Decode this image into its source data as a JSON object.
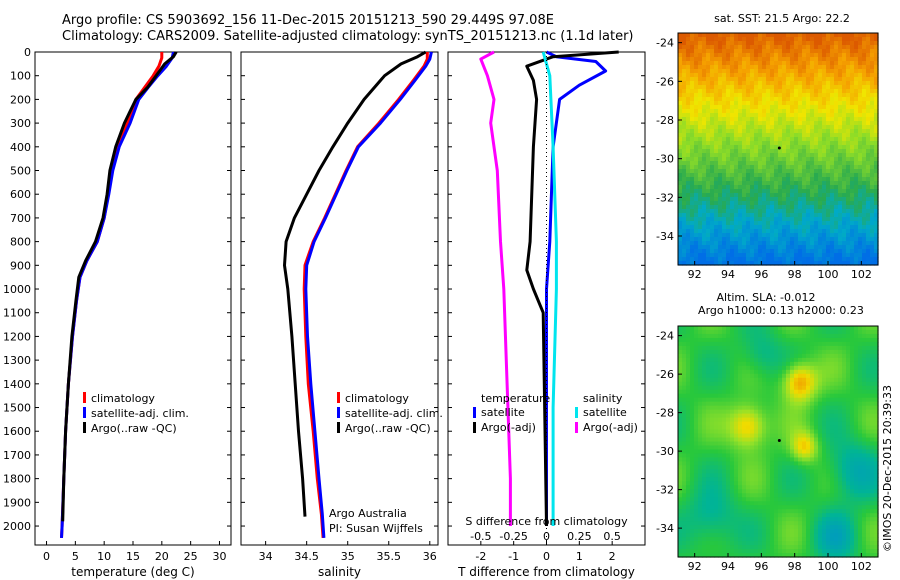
{
  "header": {
    "line1": "Argo profile: CS 5903692_156 11-Dec-2015 20151213_590 29.449S 97.08E",
    "line2": "Climatology: CARS2009. Satellite-adjusted climatology: synTS_20151213.nc (1.1d later)"
  },
  "footer": {
    "stamp": "©IMOS 20-Dec-2015 20:39:33"
  },
  "colors": {
    "climatology": "#ff0000",
    "satellite": "#0000ff",
    "argo": "#000000",
    "sat_diff_s": "#00e5ee",
    "argo_diff_s": "#ff00ff"
  },
  "chart_data": [
    {
      "type": "line",
      "xlabel": "temperature (deg C)",
      "ylabel": "",
      "xlim": [
        -2,
        32
      ],
      "ylim": [
        2080,
        0
      ],
      "xticks": [
        "0",
        "5",
        "10",
        "15",
        "20",
        "25",
        "30"
      ],
      "yticks": [
        "0",
        "100",
        "200",
        "300",
        "400",
        "500",
        "600",
        "700",
        "800",
        "900",
        "1000",
        "1100",
        "1200",
        "1300",
        "1400",
        "1500",
        "1600",
        "1700",
        "1800",
        "1900",
        "2000"
      ],
      "legend": [
        "climatology",
        "satellite-adj. clim.",
        "Argo(..raw -QC)"
      ],
      "series": [
        {
          "name": "climatology",
          "color": "#ff0000",
          "points": [
            [
              20.0,
              0
            ],
            [
              20.0,
              25
            ],
            [
              19.5,
              60
            ],
            [
              18.5,
              100
            ],
            [
              17.0,
              150
            ],
            [
              15.5,
              200
            ],
            [
              14.0,
              300
            ],
            [
              12.2,
              400
            ],
            [
              11.3,
              500
            ],
            [
              10.7,
              600
            ],
            [
              10.0,
              700
            ],
            [
              8.8,
              800
            ],
            [
              7.0,
              880
            ],
            [
              5.8,
              950
            ],
            [
              5.2,
              1050
            ],
            [
              4.5,
              1200
            ],
            [
              3.8,
              1400
            ],
            [
              3.3,
              1600
            ],
            [
              3.0,
              1800
            ],
            [
              2.7,
              2000
            ],
            [
              2.6,
              2050
            ]
          ]
        },
        {
          "name": "satellite-adj. clim.",
          "color": "#0000ff",
          "points": [
            [
              22.0,
              0
            ],
            [
              21.8,
              25
            ],
            [
              20.8,
              60
            ],
            [
              19.3,
              100
            ],
            [
              17.6,
              150
            ],
            [
              16.0,
              200
            ],
            [
              14.5,
              300
            ],
            [
              12.6,
              400
            ],
            [
              11.5,
              500
            ],
            [
              10.8,
              600
            ],
            [
              10.0,
              700
            ],
            [
              8.8,
              800
            ],
            [
              7.0,
              880
            ],
            [
              5.8,
              950
            ],
            [
              5.2,
              1050
            ],
            [
              4.5,
              1200
            ],
            [
              3.8,
              1400
            ],
            [
              3.3,
              1600
            ],
            [
              3.0,
              1800
            ],
            [
              2.7,
              2000
            ],
            [
              2.6,
              2050
            ]
          ]
        },
        {
          "name": "Argo(..raw -QC)",
          "color": "#000000",
          "points": [
            [
              22.5,
              0
            ],
            [
              22.0,
              20
            ],
            [
              20.5,
              50
            ],
            [
              19.0,
              100
            ],
            [
              17.5,
              150
            ],
            [
              15.5,
              200
            ],
            [
              13.5,
              300
            ],
            [
              12.0,
              400
            ],
            [
              11.0,
              500
            ],
            [
              10.5,
              600
            ],
            [
              9.8,
              700
            ],
            [
              8.5,
              800
            ],
            [
              6.8,
              880
            ],
            [
              5.6,
              950
            ],
            [
              5.1,
              1050
            ],
            [
              4.4,
              1200
            ],
            [
              3.8,
              1400
            ],
            [
              3.3,
              1600
            ],
            [
              3.0,
              1800
            ],
            [
              2.8,
              1980
            ]
          ]
        }
      ]
    },
    {
      "type": "line",
      "xlabel": "salinity",
      "xlim": [
        33.7,
        36.1
      ],
      "ylim": [
        2080,
        0
      ],
      "xticks": [
        "34",
        "34.5",
        "35",
        "35.5",
        "36"
      ],
      "legend": [
        "climatology",
        "satellite-adj. clim.",
        "Argo(..raw -QC)"
      ],
      "annotations": [
        "Argo Australia",
        "PI: Susan Wijffels"
      ],
      "series": [
        {
          "name": "climatology",
          "color": "#ff0000",
          "points": [
            [
              35.97,
              0
            ],
            [
              35.97,
              30
            ],
            [
              35.93,
              60
            ],
            [
              35.8,
              120
            ],
            [
              35.62,
              200
            ],
            [
              35.38,
              300
            ],
            [
              35.12,
              400
            ],
            [
              34.98,
              500
            ],
            [
              34.85,
              600
            ],
            [
              34.72,
              700
            ],
            [
              34.58,
              800
            ],
            [
              34.48,
              900
            ],
            [
              34.47,
              1000
            ],
            [
              34.49,
              1200
            ],
            [
              34.52,
              1400
            ],
            [
              34.58,
              1600
            ],
            [
              34.63,
              1800
            ],
            [
              34.68,
              1950
            ],
            [
              34.7,
              2050
            ]
          ]
        },
        {
          "name": "satellite-adj. clim.",
          "color": "#0000ff",
          "points": [
            [
              36.02,
              0
            ],
            [
              36.0,
              30
            ],
            [
              35.95,
              60
            ],
            [
              35.82,
              120
            ],
            [
              35.64,
              200
            ],
            [
              35.4,
              300
            ],
            [
              35.13,
              400
            ],
            [
              34.99,
              500
            ],
            [
              34.86,
              600
            ],
            [
              34.73,
              700
            ],
            [
              34.59,
              800
            ],
            [
              34.5,
              900
            ],
            [
              34.49,
              1000
            ],
            [
              34.51,
              1200
            ],
            [
              34.55,
              1400
            ],
            [
              34.6,
              1600
            ],
            [
              34.65,
              1800
            ],
            [
              34.69,
              1950
            ],
            [
              34.71,
              2050
            ]
          ]
        },
        {
          "name": "Argo(..raw -QC)",
          "color": "#000000",
          "points": [
            [
              35.95,
              0
            ],
            [
              35.85,
              20
            ],
            [
              35.65,
              50
            ],
            [
              35.45,
              100
            ],
            [
              35.2,
              200
            ],
            [
              35.0,
              300
            ],
            [
              34.82,
              400
            ],
            [
              34.65,
              500
            ],
            [
              34.5,
              600
            ],
            [
              34.35,
              700
            ],
            [
              34.25,
              800
            ],
            [
              34.23,
              900
            ],
            [
              34.27,
              1000
            ],
            [
              34.32,
              1200
            ],
            [
              34.36,
              1400
            ],
            [
              34.4,
              1600
            ],
            [
              34.45,
              1800
            ],
            [
              34.48,
              1960
            ]
          ]
        }
      ]
    },
    {
      "type": "line",
      "xlabel": "T difference from climatology",
      "top_axis_label": "S difference from climatology",
      "xlim": [
        -3.0,
        3.0
      ],
      "ylim": [
        2080,
        0
      ],
      "xticks": [
        "-2",
        "-1",
        "0",
        "1",
        "2"
      ],
      "top_xticks": [
        "-0.5",
        "-0.25",
        "0",
        "0.25",
        "0.5"
      ],
      "legend_headers": [
        "temperature",
        "salinity"
      ],
      "legend": [
        "satellite",
        "Argo(-adj)",
        "satellite",
        "Argo(-adj)"
      ],
      "series": [
        {
          "name": "satellite",
          "color": "#0000ff",
          "points": [
            [
              0.0,
              0
            ],
            [
              0.3,
              20
            ],
            [
              1.5,
              40
            ],
            [
              1.8,
              80
            ],
            [
              1.0,
              140
            ],
            [
              0.4,
              200
            ],
            [
              0.2,
              400
            ],
            [
              0.1,
              800
            ],
            [
              0.0,
              1000
            ],
            [
              0.0,
              2000
            ]
          ]
        },
        {
          "name": "Argo(-adj)",
          "color": "#000000",
          "points": [
            [
              2.2,
              0
            ],
            [
              0.2,
              20
            ],
            [
              -0.6,
              60
            ],
            [
              -0.4,
              120
            ],
            [
              -0.3,
              200
            ],
            [
              -0.4,
              400
            ],
            [
              -0.5,
              800
            ],
            [
              -0.6,
              920
            ],
            [
              -0.4,
              1000
            ],
            [
              -0.1,
              1100
            ],
            [
              0.0,
              2000
            ]
          ]
        },
        {
          "name": "satellite",
          "color": "#00e5ee",
          "points": [
            [
              -0.1,
              0
            ],
            [
              0.1,
              100
            ],
            [
              0.2,
              400
            ],
            [
              0.3,
              800
            ],
            [
              0.3,
              1000
            ],
            [
              0.2,
              1500
            ],
            [
              0.2,
              2000
            ]
          ]
        },
        {
          "name": "Argo(-adj)",
          "color": "#ff00ff",
          "points": [
            [
              -1.6,
              0
            ],
            [
              -2.0,
              30
            ],
            [
              -1.8,
              100
            ],
            [
              -1.6,
              200
            ],
            [
              -1.7,
              300
            ],
            [
              -1.5,
              500
            ],
            [
              -1.4,
              800
            ],
            [
              -1.3,
              1000
            ],
            [
              -1.2,
              1400
            ],
            [
              -1.1,
              1800
            ],
            [
              -1.1,
              2000
            ]
          ]
        }
      ]
    },
    {
      "type": "heatmap",
      "title": "sat. SST: 21.5 Argo: 22.2",
      "xlim": [
        91,
        103
      ],
      "ylim": [
        -35.5,
        -23.5
      ],
      "xticks": [
        "92",
        "94",
        "96",
        "98",
        "100",
        "102"
      ],
      "yticks": [
        "-24",
        "-26",
        "-28",
        "-30",
        "-32",
        "-34"
      ],
      "marker": [
        97.08,
        -29.449
      ]
    },
    {
      "type": "heatmap",
      "title": "Altim. SLA: -0.012",
      "subtitle": "Argo h1000: 0.13 h2000: 0.23",
      "xlim": [
        91,
        103
      ],
      "ylim": [
        -35.5,
        -23.5
      ],
      "xticks": [
        "92",
        "94",
        "96",
        "98",
        "100",
        "102"
      ],
      "yticks": [
        "-24",
        "-26",
        "-28",
        "-30",
        "-32",
        "-34"
      ],
      "marker": [
        97.08,
        -29.449
      ]
    }
  ]
}
